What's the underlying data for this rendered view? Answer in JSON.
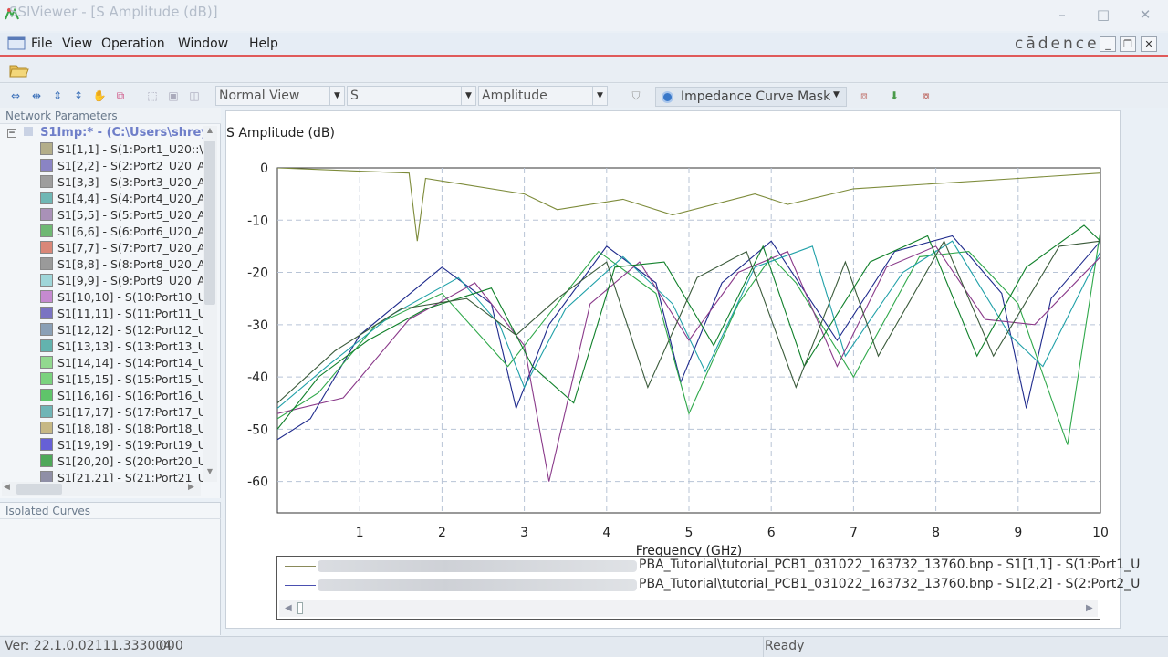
{
  "window": {
    "title": "SSIViewer - [S Amplitude (dB)]",
    "controls": {
      "minimize": "–",
      "maximize": "□",
      "close": "✕"
    }
  },
  "menu": {
    "items": [
      "File",
      "View",
      "Operation",
      "Window",
      "Help"
    ],
    "brand": "cādence",
    "mdi": {
      "minimize": "_",
      "restore": "❐",
      "close": "✕"
    }
  },
  "toolbar": {
    "view_mode": "Normal View",
    "param": "S",
    "quantity": "Amplitude",
    "mask_label": "Impedance Curve Mask"
  },
  "network_panel": {
    "header": "Network Parameters",
    "root": "S1Imp:* - (C:\\Users\\shrey",
    "items": [
      {
        "label": "S1[1,1] - S(1:Port1_U20::\\",
        "color": "#b3ae8a"
      },
      {
        "label": "S1[2,2] - S(2:Port2_U20_A",
        "color": "#8a84c4"
      },
      {
        "label": "S1[3,3] - S(3:Port3_U20_A",
        "color": "#9e9e9e"
      },
      {
        "label": "S1[4,4] - S(4:Port4_U20_A",
        "color": "#6fb7b5"
      },
      {
        "label": "S1[5,5] - S(5:Port5_U20_A",
        "color": "#a991b8"
      },
      {
        "label": "S1[6,6] - S(6:Port6_U20_A",
        "color": "#6fb873"
      },
      {
        "label": "S1[7,7] - S(7:Port7_U20_A",
        "color": "#d98778"
      },
      {
        "label": "S1[8,8] - S(8:Port8_U20_A",
        "color": "#9a9a9a"
      },
      {
        "label": "S1[9,9] - S(9:Port9_U20_A",
        "color": "#9fd6d9"
      },
      {
        "label": "S1[10,10] - S(10:Port10_U",
        "color": "#c58ad0"
      },
      {
        "label": "S1[11,11] - S(11:Port11_U",
        "color": "#7a73c2"
      },
      {
        "label": "S1[12,12] - S(12:Port12_U",
        "color": "#8aa0b6"
      },
      {
        "label": "S1[13,13] - S(13:Port13_U",
        "color": "#63b3ae"
      },
      {
        "label": "S1[14,14] - S(14:Port14_U",
        "color": "#92d98f"
      },
      {
        "label": "S1[15,15] - S(15:Port15_U",
        "color": "#7ad27e"
      },
      {
        "label": "S1[16,16] - S(16:Port16_U",
        "color": "#5fc46a"
      },
      {
        "label": "S1[17,17] - S(17:Port17_U",
        "color": "#6fb5b6"
      },
      {
        "label": "S1[18,18] - S(18:Port18_U",
        "color": "#c6b885"
      },
      {
        "label": "S1[19,19] - S(19:Port19_U",
        "color": "#6660d6"
      },
      {
        "label": "S1[20,20] - S(20:Port20_U",
        "color": "#4fa85a"
      },
      {
        "label": "S1[21,21] - S(21:Port21_U",
        "color": "#8f8fa6"
      }
    ]
  },
  "isolated_panel": {
    "header": "Isolated Curves"
  },
  "legend": {
    "rows": [
      {
        "text": "PBA_Tutorial\\tutorial_PCB1_031022_163732_13760.bnp - S1[1,1] - S(1:Port1_U",
        "color": "#8a8a5a"
      },
      {
        "text": "PBA_Tutorial\\tutorial_PCB1_031022_163732_13760.bnp - S1[2,2] - S(2:Port2_U",
        "color": "#4a4fb0"
      }
    ]
  },
  "status": {
    "version": "Ver: 22.1.0.02111.333004",
    "code": "000",
    "state": "Ready"
  },
  "chart_data": {
    "type": "line",
    "title": "S Amplitude (dB)",
    "xlabel": "Frequency (GHz)",
    "ylabel": "",
    "xlim": [
      0,
      10
    ],
    "ylim": [
      -66,
      0
    ],
    "xticks": [
      1,
      2,
      3,
      4,
      5,
      6,
      7,
      8,
      9,
      10
    ],
    "yticks": [
      0,
      -10,
      -20,
      -30,
      -40,
      -50,
      -60
    ],
    "grid": true,
    "legend_position": "bottom",
    "series": [
      {
        "name": "S1[1,1]",
        "color": "#7d8b3a",
        "x": [
          0,
          1.6,
          1.7,
          1.8,
          2.2,
          3.0,
          3.4,
          4.2,
          4.8,
          5.8,
          6.2,
          7.0,
          8,
          9,
          10
        ],
        "y": [
          0,
          -1,
          -14,
          -2,
          -3,
          -5,
          -8,
          -6,
          -9,
          -5,
          -7,
          -4,
          -3,
          -2,
          -1
        ]
      },
      {
        "name": "S1[2,2]",
        "color": "#1e2a8c",
        "x": [
          0,
          0.4,
          1.0,
          2.0,
          2.6,
          2.9,
          3.3,
          4.0,
          4.6,
          4.9,
          5.4,
          6.0,
          6.8,
          7.5,
          8.2,
          8.8,
          9.1,
          9.4,
          10
        ],
        "y": [
          -52,
          -48,
          -32,
          -19,
          -26,
          -46,
          -30,
          -15,
          -22,
          -41,
          -22,
          -14,
          -33,
          -16,
          -13,
          -24,
          -46,
          -25,
          -14
        ]
      },
      {
        "name": "S1[3,3]",
        "color": "#2fa84a",
        "x": [
          0,
          0.5,
          1.2,
          2.0,
          2.8,
          3.2,
          3.9,
          4.6,
          5.0,
          5.6,
          6.0,
          6.3,
          7.0,
          7.8,
          8.4,
          9.0,
          9.6,
          10
        ],
        "y": [
          -48,
          -43,
          -30,
          -24,
          -38,
          -30,
          -16,
          -24,
          -47,
          -26,
          -17,
          -22,
          -40,
          -17,
          -16,
          -26,
          -53,
          -12
        ]
      },
      {
        "name": "S1[4,4]",
        "color": "#20a0a8",
        "x": [
          0,
          0.6,
          1.4,
          2.2,
          2.7,
          3.0,
          3.5,
          4.2,
          4.8,
          5.2,
          5.8,
          6.5,
          6.9,
          7.6,
          8.2,
          8.9,
          9.3,
          10
        ],
        "y": [
          -46,
          -38,
          -28,
          -21,
          -30,
          -42,
          -27,
          -17,
          -26,
          -39,
          -19,
          -15,
          -36,
          -20,
          -14,
          -32,
          -38,
          -16
        ]
      },
      {
        "name": "S1[5,5]",
        "color": "#8a3a8a",
        "x": [
          0,
          0.8,
          1.6,
          2.4,
          3.0,
          3.3,
          3.8,
          4.4,
          5.0,
          5.6,
          6.2,
          6.8,
          7.4,
          8.0,
          8.6,
          9.2,
          10
        ],
        "y": [
          -47,
          -44,
          -29,
          -22,
          -34,
          -60,
          -26,
          -18,
          -33,
          -20,
          -16,
          -38,
          -19,
          -15,
          -29,
          -30,
          -17
        ]
      },
      {
        "name": "S1[6,6]",
        "color": "#10802a",
        "x": [
          0,
          0.5,
          1.1,
          1.8,
          2.6,
          3.1,
          3.6,
          4.1,
          4.7,
          5.3,
          5.9,
          6.4,
          7.2,
          7.9,
          8.5,
          9.1,
          9.8,
          10
        ],
        "y": [
          -50,
          -40,
          -33,
          -27,
          -23,
          -38,
          -45,
          -19,
          -18,
          -34,
          -15,
          -38,
          -18,
          -13,
          -36,
          -19,
          -11,
          -14
        ]
      },
      {
        "name": "S1[7,7]",
        "color": "#3a5a3a",
        "x": [
          0,
          0.7,
          1.5,
          2.3,
          2.9,
          3.4,
          4.0,
          4.5,
          5.1,
          5.7,
          6.3,
          6.9,
          7.3,
          8.1,
          8.7,
          9.5,
          10
        ],
        "y": [
          -45,
          -35,
          -27,
          -25,
          -32,
          -25,
          -18,
          -42,
          -21,
          -16,
          -42,
          -18,
          -36,
          -14,
          -36,
          -15,
          -14
        ]
      }
    ]
  }
}
